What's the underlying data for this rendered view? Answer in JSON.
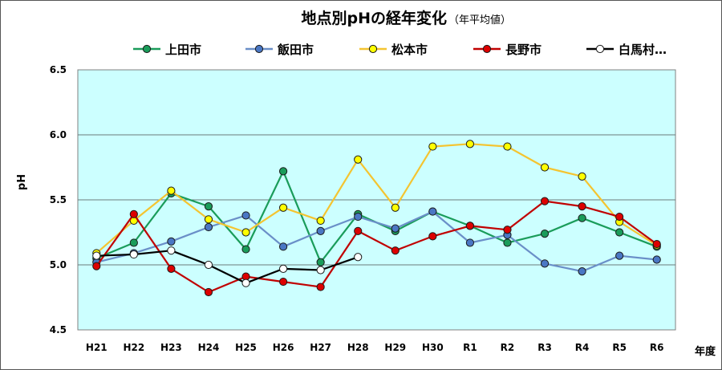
{
  "chart_data": {
    "type": "line",
    "title": "地点別pHの経年変化",
    "subtitle": "（年平均値）",
    "xlabel": "年度",
    "ylabel": "pH",
    "ylim": [
      4.5,
      6.5
    ],
    "yticks": [
      "6.5",
      "6.0",
      "5.5",
      "5.0",
      "4.5"
    ],
    "grid": "horizontal",
    "legend_position": "top",
    "plot_background": "#ccffff",
    "categories": [
      "H21",
      "H22",
      "H23",
      "H24",
      "H25",
      "H26",
      "H27",
      "H28",
      "H29",
      "H30",
      "R1",
      "R2",
      "R3",
      "R4",
      "R5",
      "R6"
    ],
    "series": [
      {
        "name": "上田市",
        "line_color": "#1a9c5a",
        "marker_color": "#1a9c5a",
        "values": [
          5.05,
          5.17,
          5.55,
          5.45,
          5.12,
          5.72,
          5.02,
          5.39,
          5.26,
          5.41,
          5.3,
          5.17,
          5.24,
          5.36,
          5.25,
          5.14
        ]
      },
      {
        "name": "飯田市",
        "line_color": "#6a8fc8",
        "marker_color": "#4a77c4",
        "values": [
          5.02,
          5.09,
          5.18,
          5.29,
          5.38,
          5.14,
          5.26,
          5.37,
          5.28,
          5.41,
          5.17,
          5.23,
          5.01,
          4.95,
          5.07,
          5.04
        ]
      },
      {
        "name": "松本市",
        "line_color": "#f4c430",
        "marker_color": "#ffff00",
        "values": [
          5.09,
          5.34,
          5.57,
          5.35,
          5.25,
          5.44,
          5.34,
          5.81,
          5.44,
          5.91,
          5.93,
          5.91,
          5.75,
          5.68,
          5.33,
          5.15
        ]
      },
      {
        "name": "長野市",
        "line_color": "#c00000",
        "marker_color": "#dd0000",
        "values": [
          4.99,
          5.39,
          4.97,
          4.79,
          4.91,
          4.87,
          4.83,
          5.26,
          5.11,
          5.22,
          5.3,
          5.27,
          5.49,
          5.45,
          5.37,
          5.16
        ]
      },
      {
        "name": "白馬村…",
        "line_color": "#000000",
        "marker_color": "#ffffff",
        "values": [
          5.07,
          5.08,
          5.11,
          5.0,
          4.86,
          4.97,
          4.96,
          5.06,
          null,
          null,
          null,
          null,
          null,
          null,
          null,
          null
        ]
      }
    ]
  }
}
